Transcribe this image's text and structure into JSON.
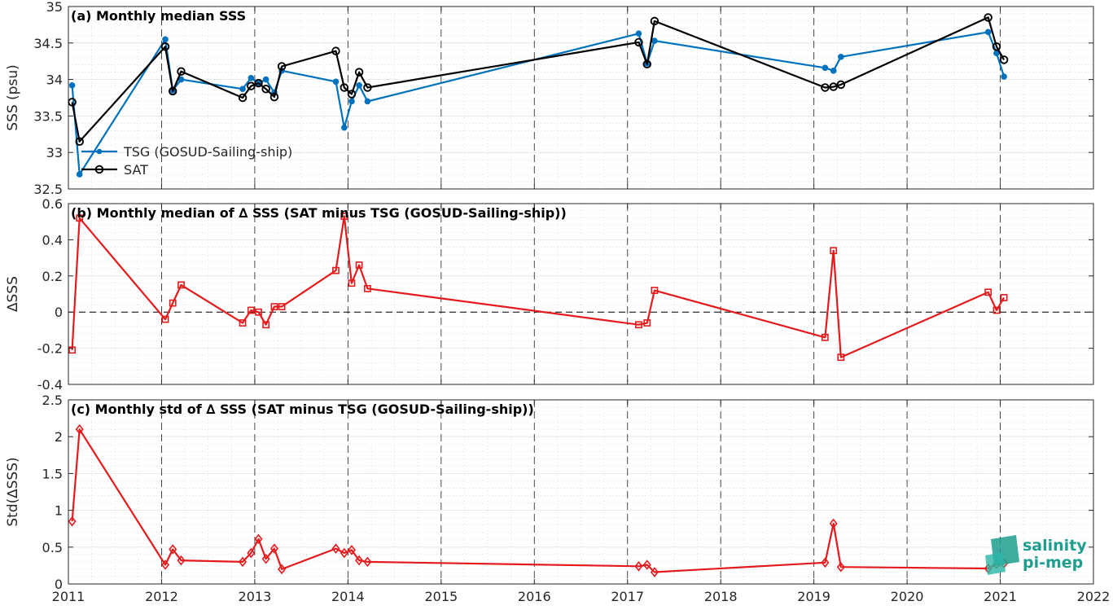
{
  "chart_data": [
    {
      "type": "line",
      "title": "(a) Monthly median SSS",
      "ylabel": "SSS (psu)",
      "xlim": [
        2011,
        2022
      ],
      "ylim": [
        32.5,
        35
      ],
      "yticks": [
        "32.5",
        "33",
        "33.5",
        "34",
        "34.5",
        "35"
      ],
      "legend_position": "center-left",
      "series": [
        {
          "name": "TSG (GOSUD-Sailing-ship)",
          "color": "#0072BD",
          "marker": "dot",
          "x": [
            2011.04,
            2011.12,
            2012.04,
            2012.12,
            2012.21,
            2012.87,
            2012.96,
            2013.04,
            2013.12,
            2013.21,
            2013.29,
            2013.87,
            2013.96,
            2014.04,
            2014.12,
            2014.21,
            2017.12,
            2017.21,
            2017.29,
            2019.12,
            2019.21,
            2019.29,
            2020.87,
            2020.96,
            2021.04
          ],
          "y": [
            33.92,
            32.7,
            34.55,
            33.85,
            34.0,
            33.87,
            34.02,
            33.95,
            34.0,
            33.82,
            34.12,
            33.97,
            33.34,
            33.7,
            33.92,
            33.7,
            34.63,
            34.22,
            34.53,
            34.16,
            34.12,
            34.31,
            34.65,
            34.36,
            34.04
          ]
        },
        {
          "name": "SAT",
          "color": "#000000",
          "marker": "circle",
          "x": [
            2011.04,
            2011.12,
            2012.04,
            2012.12,
            2012.21,
            2012.87,
            2012.96,
            2013.04,
            2013.12,
            2013.21,
            2013.29,
            2013.87,
            2013.96,
            2014.04,
            2014.12,
            2014.21,
            2017.12,
            2017.21,
            2017.29,
            2019.12,
            2019.21,
            2019.29,
            2020.87,
            2020.96,
            2021.04
          ],
          "y": [
            33.69,
            33.15,
            34.45,
            33.84,
            34.11,
            33.75,
            33.91,
            33.95,
            33.87,
            33.76,
            34.18,
            34.39,
            33.89,
            33.8,
            34.1,
            33.89,
            34.51,
            34.21,
            34.8,
            33.89,
            33.9,
            33.93,
            34.85,
            34.45,
            34.27
          ]
        }
      ]
    },
    {
      "type": "line",
      "title": "(b) Monthly median of ∆ SSS (SAT minus TSG (GOSUD-Sailing-ship))",
      "ylabel": "∆SSS",
      "xlim": [
        2011,
        2022
      ],
      "ylim": [
        -0.4,
        0.6
      ],
      "yticks": [
        "-0.4",
        "-0.2",
        "0",
        "0.2",
        "0.4",
        "0.6"
      ],
      "zero_line": "dashed",
      "series": [
        {
          "color": "#E41A1C",
          "marker": "square",
          "x": [
            2011.04,
            2011.12,
            2012.04,
            2012.12,
            2012.21,
            2012.87,
            2012.96,
            2013.04,
            2013.12,
            2013.21,
            2013.29,
            2013.87,
            2013.96,
            2014.04,
            2014.12,
            2014.21,
            2017.12,
            2017.21,
            2017.29,
            2019.12,
            2019.21,
            2019.29,
            2020.87,
            2020.96,
            2021.04
          ],
          "y": [
            -0.21,
            0.52,
            -0.04,
            0.05,
            0.15,
            -0.06,
            0.01,
            0.0,
            -0.07,
            0.03,
            0.03,
            0.23,
            0.53,
            0.16,
            0.26,
            0.13,
            -0.07,
            -0.06,
            0.12,
            -0.14,
            0.34,
            -0.25,
            0.11,
            0.01,
            0.08
          ]
        }
      ]
    },
    {
      "type": "line",
      "title": "(c) Monthly std of ∆ SSS (SAT minus TSG (GOSUD-Sailing-ship))",
      "ylabel": "Std(∆SSS)",
      "xlim": [
        2011,
        2022
      ],
      "ylim": [
        0,
        2.5
      ],
      "yticks": [
        "0",
        "0.5",
        "1",
        "1.5",
        "2",
        "2.5"
      ],
      "xticks": [
        "2011",
        "2012",
        "2013",
        "2014",
        "2015",
        "2016",
        "2017",
        "2018",
        "2019",
        "2020",
        "2021",
        "2022"
      ],
      "series": [
        {
          "color": "#E41A1C",
          "marker": "diamond",
          "x": [
            2011.04,
            2011.12,
            2012.04,
            2012.12,
            2012.21,
            2012.87,
            2012.96,
            2013.04,
            2013.12,
            2013.21,
            2013.29,
            2013.87,
            2013.96,
            2014.04,
            2014.12,
            2014.21,
            2017.12,
            2017.21,
            2017.29,
            2019.12,
            2019.21,
            2019.29,
            2020.87,
            2020.96,
            2021.04
          ],
          "y": [
            0.85,
            2.1,
            0.26,
            0.47,
            0.32,
            0.3,
            0.42,
            0.61,
            0.34,
            0.48,
            0.2,
            0.48,
            0.42,
            0.46,
            0.32,
            0.3,
            0.24,
            0.26,
            0.16,
            0.29,
            0.82,
            0.23,
            0.21,
            0.27,
            0.28
          ]
        }
      ]
    }
  ],
  "logo": {
    "line1": "salinity",
    "line2": "pi-mep",
    "color": "#1f9e8f"
  }
}
